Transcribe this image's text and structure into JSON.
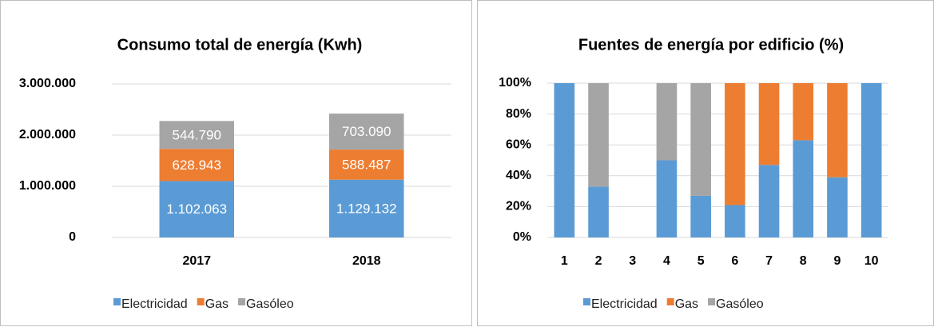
{
  "chart_data": [
    {
      "type": "bar",
      "stacked": true,
      "title": "Consumo total de energía (Kwh)",
      "categories": [
        "2017",
        "2018"
      ],
      "series": [
        {
          "name": "Electricidad",
          "color": "#5b9bd5",
          "values": [
            1102063,
            1129132
          ],
          "value_labels": [
            "1.102.063",
            "1.129.132"
          ]
        },
        {
          "name": "Gas",
          "color": "#ed7d31",
          "values": [
            628943,
            588487
          ],
          "value_labels": [
            "628.943",
            "588.487"
          ]
        },
        {
          "name": "Gasóleo",
          "color": "#a5a5a5",
          "values": [
            544790,
            703090
          ],
          "value_labels": [
            "544.790",
            "703.090"
          ]
        }
      ],
      "ylim": [
        0,
        3000000
      ],
      "yticks": [
        0,
        {
          "value": 1000000,
          "label": "1.000.000"
        },
        {
          "value": 2000000,
          "label": "2.000.000"
        },
        {
          "value": 3000000,
          "label": "3.000.000"
        }
      ],
      "grid": true,
      "legend": "bottom"
    },
    {
      "type": "bar",
      "stacked": true,
      "title": "Fuentes de energía por edificio (%)",
      "categories": [
        "1",
        "2",
        "3",
        "4",
        "5",
        "6",
        "7",
        "8",
        "9",
        "10"
      ],
      "series": [
        {
          "name": "Electricidad",
          "color": "#5b9bd5",
          "values": [
            100,
            33,
            0,
            50,
            27,
            21,
            47,
            63,
            39,
            100
          ]
        },
        {
          "name": "Gas",
          "color": "#ed7d31",
          "values": [
            0,
            0,
            0,
            0,
            0,
            79,
            53,
            37,
            61,
            0
          ]
        },
        {
          "name": "Gasóleo",
          "color": "#a5a5a5",
          "values": [
            0,
            67,
            0,
            50,
            73,
            0,
            0,
            0,
            0,
            0
          ]
        }
      ],
      "ylim": [
        0,
        100
      ],
      "yticks": [
        {
          "value": 0,
          "label": "0%"
        },
        {
          "value": 20,
          "label": "20%"
        },
        {
          "value": 40,
          "label": "40%"
        },
        {
          "value": 60,
          "label": "60%"
        },
        {
          "value": 80,
          "label": "80%"
        },
        {
          "value": 100,
          "label": "100%"
        }
      ],
      "grid": true,
      "legend": "bottom"
    }
  ]
}
